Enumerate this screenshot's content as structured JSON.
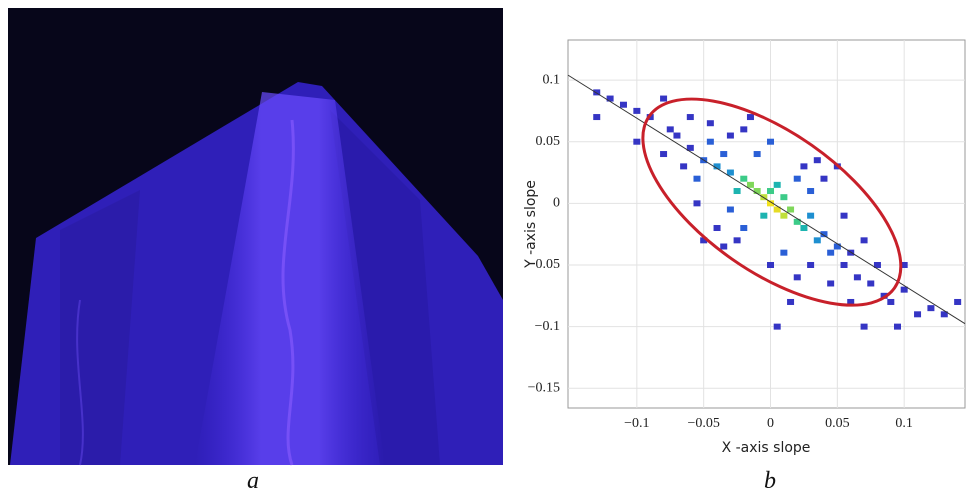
{
  "panel_labels": [
    "a",
    "b"
  ],
  "chart_data": {
    "type": "heatmap",
    "x_label": "X -axis slope",
    "y_label": "Y -axis slope",
    "xlim": [
      -0.1515,
      0.1455
    ],
    "ylim": [
      -0.166,
      0.1325
    ],
    "xticks": [
      {
        "value": -0.1,
        "label": "−0.1"
      },
      {
        "value": -0.05,
        "label": "−0.05"
      },
      0,
      0.05,
      0.1
    ],
    "yticks": [
      {
        "value": -0.15,
        "label": "−0.15"
      },
      {
        "value": -0.1,
        "label": "−0.1"
      },
      {
        "value": -0.05,
        "label": "−0.05"
      },
      0,
      0.05,
      0.1
    ],
    "grid": true,
    "colorscale": [
      "#3535c4",
      "#2a5fd6",
      "#1e8fd0",
      "#1db4b0",
      "#3ccb88",
      "#7fd75a",
      "#bfe03a",
      "#e6dc26",
      "#f2e21c"
    ],
    "x": [
      0,
      0.005,
      -0.005,
      0.01,
      -0.01,
      0.015,
      -0.015,
      0.02,
      0,
      0.005,
      -0.02,
      0.025,
      -0.025,
      0.01,
      -0.005,
      0.03,
      -0.03,
      0.035,
      -0.04,
      0.04,
      -0.035,
      0.045,
      -0.05,
      0.05,
      -0.045,
      0.055,
      -0.06,
      0.06,
      -0.055,
      0.02,
      -0.02,
      0.03,
      -0.03,
      0.065,
      -0.07,
      0.07,
      -0.065,
      0.075,
      -0.075,
      0.08,
      -0.08,
      0.085,
      -0.09,
      0.09,
      -0.1,
      0.1,
      -0.11,
      0.11,
      -0.12,
      0.12,
      -0.13,
      0.13,
      0.04,
      -0.04,
      0.05,
      -0.05,
      0.06,
      -0.06,
      0.02,
      -0.02,
      0.01,
      -0.01,
      0.03,
      -0.03,
      0.045,
      -0.045,
      0.035,
      -0.035,
      0.015,
      -0.015,
      0,
      0,
      0.025,
      -0.025,
      0.055,
      -0.055,
      0.005,
      -0.1,
      0.1,
      0.07,
      -0.08,
      0.095,
      0.14,
      -0.13
    ],
    "y": [
      0,
      -0.005,
      0.005,
      -0.01,
      0.01,
      -0.005,
      0.015,
      -0.015,
      0.01,
      0.015,
      0.02,
      -0.02,
      0.01,
      0.005,
      -0.01,
      -0.01,
      0.025,
      -0.03,
      0.03,
      -0.025,
      0.04,
      -0.04,
      0.035,
      -0.035,
      0.05,
      -0.05,
      0.045,
      -0.04,
      0.02,
      0.02,
      -0.02,
      0.01,
      -0.005,
      -0.06,
      0.055,
      -0.03,
      0.03,
      -0.065,
      0.06,
      -0.05,
      0.04,
      -0.075,
      0.07,
      -0.08,
      0.075,
      -0.07,
      0.08,
      -0.09,
      0.085,
      -0.085,
      0.09,
      -0.09,
      0.02,
      -0.02,
      0.03,
      -0.03,
      -0.08,
      0.07,
      -0.06,
      0.06,
      -0.04,
      0.04,
      -0.05,
      0.055,
      -0.065,
      0.065,
      0.035,
      -0.035,
      -0.08,
      0.07,
      -0.05,
      0.05,
      0.03,
      -0.03,
      -0.01,
      0,
      -0.1,
      0.05,
      -0.05,
      -0.1,
      0.085,
      -0.1,
      -0.08,
      0.07
    ],
    "values": [
      9,
      8,
      7,
      7,
      6,
      6,
      6,
      5,
      5,
      4,
      5,
      4,
      4,
      5,
      4,
      3,
      3,
      3,
      3,
      2,
      2,
      2,
      2,
      2,
      2,
      1,
      1,
      1,
      2,
      2,
      2,
      2,
      2,
      1,
      1,
      1,
      1,
      1,
      1,
      1,
      1,
      1,
      1,
      1,
      1,
      1,
      1,
      1,
      1,
      1,
      1,
      1,
      1,
      1,
      1,
      1,
      1,
      1,
      1,
      1,
      2,
      2,
      1,
      1,
      1,
      1,
      1,
      1,
      1,
      1,
      1,
      2,
      1,
      1,
      1,
      1,
      1,
      1,
      1,
      1,
      1,
      1,
      1,
      1
    ],
    "fit_line": {
      "x": [
        -0.1515,
        0.1455
      ],
      "y": [
        0.104,
        -0.0976
      ],
      "color": "#333333"
    },
    "ellipse": {
      "cx": 0.001,
      "cy": 0.001,
      "rx": 0.112,
      "ry": 0.052,
      "angle": 35,
      "color": "#c8202a"
    }
  }
}
